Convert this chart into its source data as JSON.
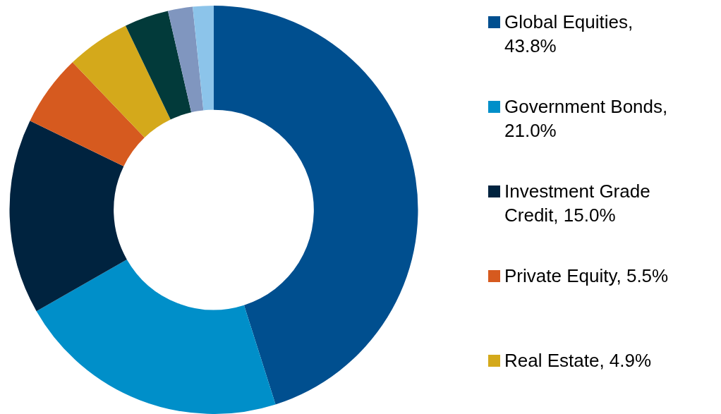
{
  "chart_data": {
    "type": "donut",
    "categories": [
      "Global Equities,\n43.8%",
      "Government Bonds,\n21.0%",
      "Investment Grade\nCredit, 15.0%",
      "Private Equity, 5.5%",
      "Real Estate, 4.9%",
      null,
      null,
      null
    ],
    "values": [
      43.8,
      21.0,
      15.0,
      5.5,
      4.9,
      3.4,
      1.9,
      1.6
    ],
    "colors": [
      "#004f8f",
      "#008fc9",
      "#00233f",
      "#d65a1f",
      "#d4a91b",
      "#023a3a",
      "#8096bf",
      "#8cc4ea"
    ],
    "legend": "right"
  }
}
